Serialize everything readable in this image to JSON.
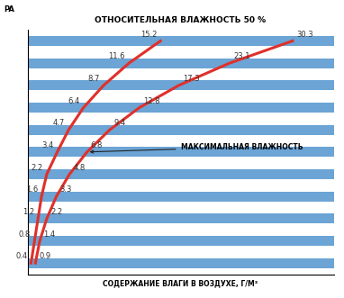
{
  "chart_data": {
    "type": "line",
    "title": "ОТНОСИТЕЛЬНАЯ ВЛАЖНОСТЬ 50 %",
    "x_label": "СОДЕРЖАНИЕ ВЛАГИ В ВОЗДУХЕ, Г/М³",
    "corner_label": "PA",
    "annotation": "МАКСИМАЛЬНАЯ ВЛАЖНОСТЬ",
    "orientation": "horizontal",
    "categories": [
      null,
      null,
      null,
      null,
      null,
      null,
      null,
      null,
      null,
      null,
      null
    ],
    "series": [
      {
        "name": "ОТНОСИТЕЛЬНАЯ ВЛАЖНОСТЬ 50 %",
        "color": "#e0302a",
        "values": [
          15.2,
          11.6,
          8.7,
          6.4,
          4.7,
          3.4,
          2.2,
          1.6,
          1.2,
          0.8,
          0.4
        ]
      },
      {
        "name": "МАКСИМАЛЬНАЯ ВЛАЖНОСТЬ",
        "color": "#e0302a",
        "values": [
          30.3,
          23.1,
          17.3,
          12.8,
          9.4,
          6.8,
          4.8,
          3.3,
          2.2,
          1.4,
          0.9
        ]
      }
    ],
    "xlim": [
      0,
      35
    ],
    "data_labels": true,
    "tick_labels": false,
    "grid": false
  }
}
